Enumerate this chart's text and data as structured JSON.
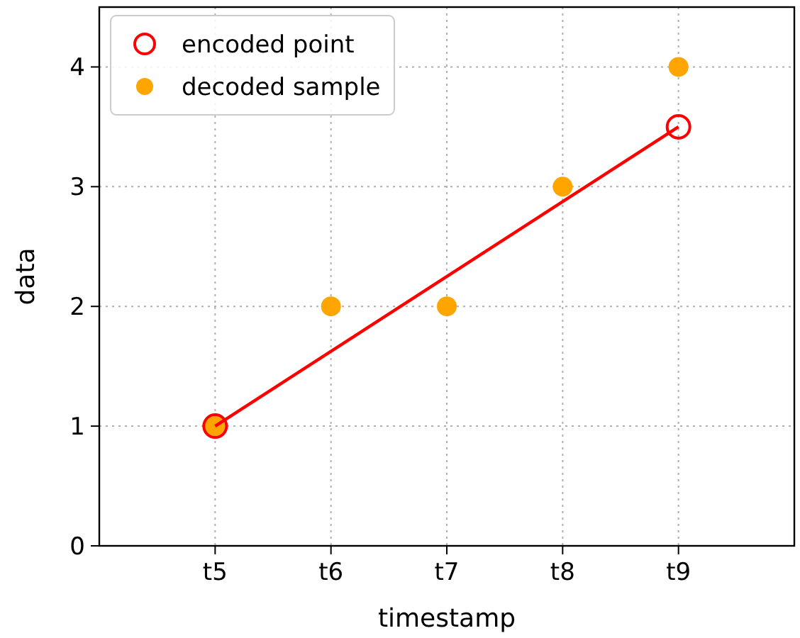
{
  "chart_data": {
    "type": "line",
    "xlabel": "timestamp",
    "ylabel": "data",
    "categories": [
      null,
      "t5",
      "t6",
      "t7",
      "t8",
      "t9",
      null
    ],
    "ylim": [
      0,
      4.5
    ],
    "yticks": [
      0,
      1,
      2,
      3,
      4
    ],
    "grid": true,
    "legend": "top left",
    "series": [
      {
        "name": "encoded point",
        "color": "#ff0000",
        "marker": "circle",
        "values": [
          null,
          1,
          null,
          null,
          null,
          3.5,
          null
        ]
      },
      {
        "name": "decoded sample",
        "type": "scatter",
        "color": "#ffa500",
        "marker": "circle",
        "values": [
          null,
          1,
          2,
          2,
          3,
          4,
          null
        ]
      }
    ]
  }
}
